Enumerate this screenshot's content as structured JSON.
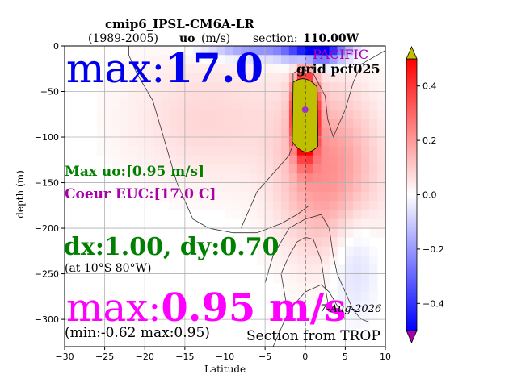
{
  "header": {
    "title": "cmip6_IPSL-CM6A-LR",
    "period": "(1989-2005)",
    "variable_name": "uo",
    "variable_units": "(m/s)",
    "section_label": "section:",
    "section_value": "110.00W"
  },
  "overlays": {
    "basin": "PACIFIC",
    "grid": "grid pcf025",
    "max_temp_prefix": "max:",
    "max_temp_value": "17.0",
    "max_uo_text": "Max uo:[0.95 m/s]",
    "core_euc_text": "Coeur EUC:[17.0 C]",
    "resolution_text": "dx:1.00, dy:0.70",
    "resolution_location": "(at 10°S 80°W)",
    "max_speed_prefix": "max:",
    "max_speed_value": "0.95 m/s",
    "minmax_text": "(min:-0.62 max:0.95)",
    "date_text": "7-Aug-2026",
    "source_text": "Section from TROP"
  },
  "chart_data": {
    "type": "heatmap",
    "xlabel": "Latitude",
    "ylabel": "depth (m)",
    "xlim": [
      -30,
      10
    ],
    "ylim": [
      -330,
      0
    ],
    "xticks": [
      -30,
      -25,
      -20,
      -15,
      -10,
      -5,
      0,
      5,
      10
    ],
    "yticks": [
      0,
      -50,
      -100,
      -150,
      -200,
      -250,
      -300
    ],
    "grid": true,
    "colormap": "bwr",
    "color_range": [
      -0.5,
      0.5
    ],
    "colorbar_ticks": [
      0.4,
      0.2,
      0.0,
      -0.2,
      -0.4
    ],
    "colorbar_extend": "both",
    "extend_colors": {
      "max": "#bfbf00",
      "min": "#aa00aa"
    },
    "field_min": -0.62,
    "field_max": 0.95,
    "equator_line_x": 0,
    "core_marker": {
      "x": 0,
      "y": -70
    },
    "colors": {
      "high_label": "#0000ee",
      "green_label": "#008000",
      "magenta_label": "#ff00ff",
      "purple_label": "#aa00aa",
      "core_fill": "#bfbf00",
      "marker": "#9933cc"
    }
  }
}
